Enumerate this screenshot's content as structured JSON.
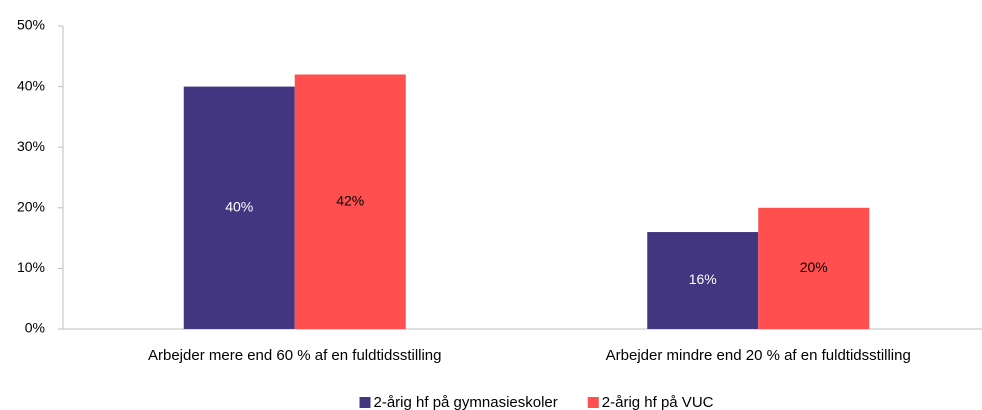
{
  "chart_data": {
    "type": "bar",
    "categories": [
      "Arbejder mere end 60 % af en fuldtidsstilling",
      "Arbejder mindre end 20 % af en fuldtidsstilling"
    ],
    "series": [
      {
        "name": "2-årig hf på gymnasieskoler",
        "color": "#433681",
        "label_color": "#ffffff",
        "values": [
          40,
          16
        ],
        "value_labels": [
          "40%",
          "16%"
        ]
      },
      {
        "name": "2-årig hf på VUC",
        "color": "#ff4f4f",
        "label_color": "#000000",
        "values": [
          42,
          20
        ],
        "value_labels": [
          "42%",
          "20%"
        ]
      }
    ],
    "ylim": [
      0,
      50
    ],
    "yticks": [
      {
        "value": 0,
        "label": "0%"
      },
      {
        "value": 10,
        "label": "10%"
      },
      {
        "value": 20,
        "label": "20%"
      },
      {
        "value": 30,
        "label": "30%"
      },
      {
        "value": 40,
        "label": "40%"
      },
      {
        "value": 50,
        "label": "50%"
      }
    ],
    "grid": false,
    "legend": "bottom"
  }
}
